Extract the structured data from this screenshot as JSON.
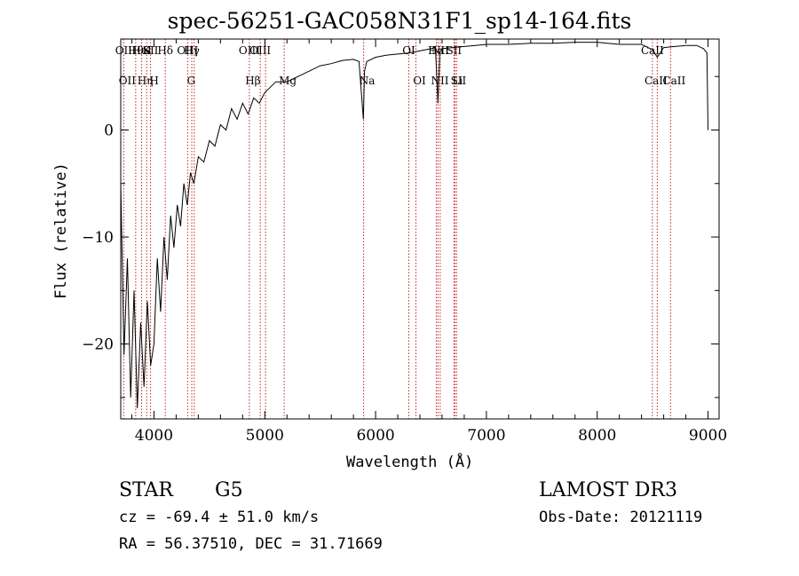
{
  "chart_data": {
    "type": "line",
    "title": "spec-56251-GAC058N31F1_sp14-164.fits",
    "xlabel": "Wavelength (Å)",
    "ylabel": "Flux (relative)",
    "xlim": [
      3700,
      9100
    ],
    "ylim": [
      -27,
      8.5
    ],
    "xticks": [
      4000,
      5000,
      6000,
      7000,
      8000,
      9000
    ],
    "yticks": [
      0,
      -10,
      -20
    ],
    "grid": false,
    "series": [
      {
        "x": [
          3700,
          3730,
          3760,
          3790,
          3820,
          3850,
          3880,
          3910,
          3940,
          3970,
          4000,
          4030,
          4060,
          4090,
          4120,
          4150,
          4180,
          4210,
          4240,
          4270,
          4300,
          4330,
          4360,
          4400,
          4450,
          4500,
          4550,
          4600,
          4650,
          4700,
          4750,
          4800,
          4850,
          4900,
          4950,
          5000,
          5100,
          5200,
          5300,
          5400,
          5500,
          5600,
          5700,
          5800,
          5850,
          5890,
          5900,
          5920,
          6000,
          6100,
          6200,
          6300,
          6400,
          6500,
          6540,
          6563,
          6580,
          6600,
          6700,
          6800,
          6900,
          7000,
          7200,
          7400,
          7600,
          7800,
          8000,
          8200,
          8400,
          8500,
          8542,
          8600,
          8700,
          8800,
          8900,
          8960,
          8990,
          9000
        ],
        "values": [
          -5,
          -21,
          -12,
          -25,
          -15,
          -26,
          -18,
          -24,
          -16,
          -22,
          -20,
          -12,
          -17,
          -10,
          -14,
          -8,
          -11,
          -7,
          -9,
          -5,
          -7,
          -4,
          -5,
          -2.5,
          -3,
          -1,
          -1.5,
          0.5,
          0,
          2,
          1,
          2.5,
          1.5,
          3,
          2.5,
          3.5,
          4.5,
          4.5,
          5,
          5.5,
          6,
          6.2,
          6.5,
          6.6,
          6.4,
          1,
          5.5,
          6.4,
          6.8,
          7,
          7.1,
          7.2,
          7.4,
          7.6,
          7.7,
          2.5,
          7.3,
          7.6,
          7.7,
          7.8,
          7.9,
          8,
          8,
          8.1,
          8.1,
          8.2,
          8.2,
          8,
          8,
          7.5,
          6.8,
          7.7,
          7.8,
          7.9,
          7.9,
          7.6,
          7.2,
          0
        ]
      }
    ],
    "lines": [
      {
        "x": 3727,
        "top": [
          "OII"
        ],
        "bottom": [
          "OII"
        ]
      },
      {
        "x": 3835,
        "top": [
          "Hθ"
        ],
        "bottom": []
      },
      {
        "x": 3889,
        "top": [
          "HeI"
        ],
        "bottom": [
          "Hη"
        ]
      },
      {
        "x": 3934,
        "top": [
          "K"
        ],
        "bottom": []
      },
      {
        "x": 3969,
        "top": [
          "SII"
        ],
        "bottom": [
          "H"
        ]
      },
      {
        "x": 4102,
        "top": [
          "Hδ"
        ],
        "bottom": []
      },
      {
        "x": 4304,
        "top": [
          "OIII"
        ],
        "bottom": [
          "G"
        ]
      },
      {
        "x": 4341,
        "top": [
          "Hγ"
        ],
        "bottom": []
      },
      {
        "x": 4363,
        "top": [],
        "bottom": []
      },
      {
        "x": 4861,
        "top": [
          "OIII"
        ],
        "bottom": [
          "Hβ"
        ]
      },
      {
        "x": 4959,
        "top": [
          "OIII"
        ],
        "bottom": []
      },
      {
        "x": 5007,
        "top": [],
        "bottom": []
      },
      {
        "x": 5175,
        "top": [],
        "bottom": [
          "Mg"
        ]
      },
      {
        "x": 5892,
        "top": [],
        "bottom": [
          "Na"
        ]
      },
      {
        "x": 6300,
        "top": [
          "OI"
        ],
        "bottom": []
      },
      {
        "x": 6364,
        "top": [],
        "bottom": [
          "OI"
        ]
      },
      {
        "x": 6548,
        "top": [
          "Hα"
        ],
        "bottom": [
          "NII"
        ]
      },
      {
        "x": 6563,
        "top": [],
        "bottom": []
      },
      {
        "x": 6583,
        "top": [
          "NII"
        ],
        "bottom": []
      },
      {
        "x": 6707,
        "top": [
          "SII"
        ],
        "bottom": [
          "Li"
        ]
      },
      {
        "x": 6716,
        "top": [],
        "bottom": [
          "SII"
        ]
      },
      {
        "x": 6731,
        "top": [],
        "bottom": []
      },
      {
        "x": 8498,
        "top": [
          "CaII"
        ],
        "bottom": [
          "CaII"
        ]
      },
      {
        "x": 8542,
        "top": [],
        "bottom": []
      },
      {
        "x": 8662,
        "top": [],
        "bottom": [
          "CaII"
        ]
      }
    ],
    "line_color": "#000000",
    "marker_color": "#cc2222"
  },
  "info": {
    "object_class": "STAR",
    "subclass": "G5",
    "survey": "LAMOST DR3",
    "cz": "cz = -69.4 ± 51.0 km/s",
    "obs_date": "Obs-Date: 20121119",
    "coords": "RA =  56.37510, DEC =  31.71669"
  }
}
